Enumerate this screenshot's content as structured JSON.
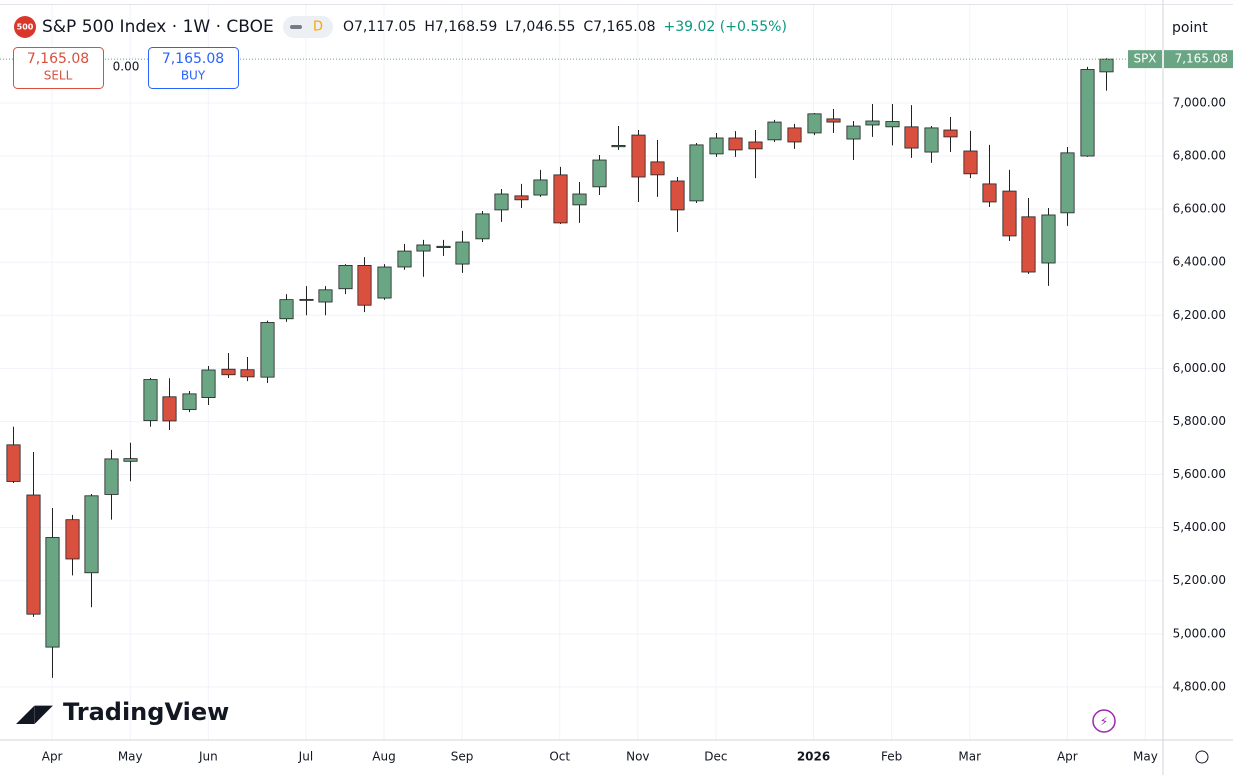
{
  "chart_data": {
    "type": "candlestick",
    "title": "S&P 500 Index · 1W · CBOE",
    "symbol_badge": "500",
    "ohlc_legend": [
      "O7,117.05",
      "H7,168.59",
      "L7,046.55",
      "C7,165.08",
      "+39.02 (+0.55%)"
    ],
    "sell_price": "7,165.08",
    "sell_label": "SELL",
    "spread": "0.00",
    "buy_price": "7,165.08",
    "buy_label": "BUY",
    "axis_unit": "point",
    "last_price_label": "7,165.08",
    "watermark": "TradingView",
    "up_color": "#6aa584",
    "down_color": "#d9503f",
    "x": [
      0,
      1,
      2,
      3,
      4,
      5,
      6,
      7,
      8,
      9,
      10,
      11,
      12,
      13,
      14,
      15,
      16,
      17,
      18,
      19,
      20,
      21,
      22,
      23,
      24,
      25,
      26,
      27,
      28,
      29,
      30,
      31,
      32,
      33,
      34,
      35,
      36,
      37,
      38,
      39,
      40,
      41,
      42,
      43,
      44,
      45,
      46,
      47,
      48,
      49,
      50,
      51,
      52,
      53,
      54,
      55,
      56
    ],
    "xlim": [
      -0.67,
      58.9
    ],
    "xticks": [
      {
        "value": 2,
        "label": "Apr"
      },
      {
        "value": 6,
        "label": "May"
      },
      {
        "value": 10,
        "label": "Jun"
      },
      {
        "value": 15,
        "label": "Jul"
      },
      {
        "value": 19,
        "label": "Aug"
      },
      {
        "value": 23,
        "label": "Sep"
      },
      {
        "value": 28,
        "label": "Oct"
      },
      {
        "value": 32,
        "label": "Nov"
      },
      {
        "value": 36,
        "label": "Dec"
      },
      {
        "value": 41,
        "label": "2026"
      },
      {
        "value": 45,
        "label": "Feb"
      },
      {
        "value": 49,
        "label": "Mar"
      },
      {
        "value": 54,
        "label": "Apr"
      },
      {
        "value": 58,
        "label": "May"
      }
    ],
    "ylim": [
      4600,
      7369
    ],
    "yticks": [
      {
        "value": 4800,
        "label": "4,800.00"
      },
      {
        "value": 5000,
        "label": "5,000.00"
      },
      {
        "value": 5200,
        "label": "5,200.00"
      },
      {
        "value": 5400,
        "label": "5,400.00"
      },
      {
        "value": 5600,
        "label": "5,600.00"
      },
      {
        "value": 5800,
        "label": "5,800.00"
      },
      {
        "value": 6000,
        "label": "6,000.00"
      },
      {
        "value": 6200,
        "label": "6,200.00"
      },
      {
        "value": 6400,
        "label": "6,400.00"
      },
      {
        "value": 6600,
        "label": "6,600.00"
      },
      {
        "value": 6800,
        "label": "6,800.00"
      },
      {
        "value": 7000,
        "label": "7,000.00"
      }
    ],
    "grid": true,
    "series": [
      {
        "name": "SPX",
        "open": [
          5712,
          5523,
          4950,
          5430,
          5230,
          5525,
          5650,
          5803,
          5893,
          5845,
          5890,
          5997,
          5995,
          5967,
          6187,
          6260,
          6250,
          6300,
          6388,
          6265,
          6382,
          6442,
          6455,
          6393,
          6488,
          6597,
          6650,
          6653,
          6729,
          6616,
          6684,
          6835,
          6879,
          6778,
          6706,
          6631,
          6808,
          6868,
          6853,
          6861,
          6906,
          6887,
          6940,
          6864,
          6917,
          6910,
          6910,
          6815,
          6898,
          6819,
          6695,
          6668,
          6571,
          6397,
          6586,
          6800,
          7117.05
        ],
        "high": [
          5780,
          5685,
          5474,
          5448,
          5527,
          5693,
          5720,
          5964,
          5963,
          5915,
          6009,
          6058,
          6043,
          6180,
          6280,
          6310,
          6310,
          6393,
          6419,
          6393,
          6469,
          6484,
          6484,
          6518,
          6593,
          6676,
          6695,
          6748,
          6759,
          6702,
          6804,
          6913,
          6898,
          6861,
          6721,
          6849,
          6887,
          6894,
          6898,
          6936,
          6921,
          6962,
          6977,
          6932,
          6996,
          6996,
          6992,
          6913,
          6947,
          6895,
          6842,
          6748,
          6642,
          6604,
          6834,
          7136,
          7168.59
        ],
        "low": [
          5568,
          5064,
          4834,
          5220,
          5100,
          5430,
          5575,
          5780,
          5768,
          5835,
          5862,
          5964,
          5952,
          5945,
          6175,
          6200,
          6200,
          6280,
          6212,
          6258,
          6371,
          6345,
          6424,
          6360,
          6476,
          6552,
          6604,
          6646,
          6544,
          6548,
          6653,
          6823,
          6627,
          6646,
          6514,
          6623,
          6797,
          6797,
          6717,
          6853,
          6827,
          6879,
          6887,
          6785,
          6872,
          6840,
          6793,
          6774,
          6815,
          6717,
          6608,
          6480,
          6356,
          6311,
          6537,
          6797,
          7046.55
        ],
        "close": [
          5574,
          5074,
          5363,
          5282,
          5520,
          5659,
          5660,
          5958,
          5802,
          5904,
          5994,
          5976,
          5968,
          6173,
          6259,
          6260,
          6296,
          6388,
          6238,
          6382,
          6442,
          6465,
          6460,
          6476,
          6582,
          6657,
          6635,
          6710,
          6548,
          6657,
          6785,
          6840,
          6721,
          6729,
          6597,
          6842,
          6868,
          6823,
          6827,
          6928,
          6853,
          6959,
          6928,
          6913,
          6932,
          6930,
          6830,
          6906,
          6872,
          6733,
          6627,
          6499,
          6363,
          6578,
          6812,
          7126.06,
          7165.08
        ]
      }
    ]
  }
}
